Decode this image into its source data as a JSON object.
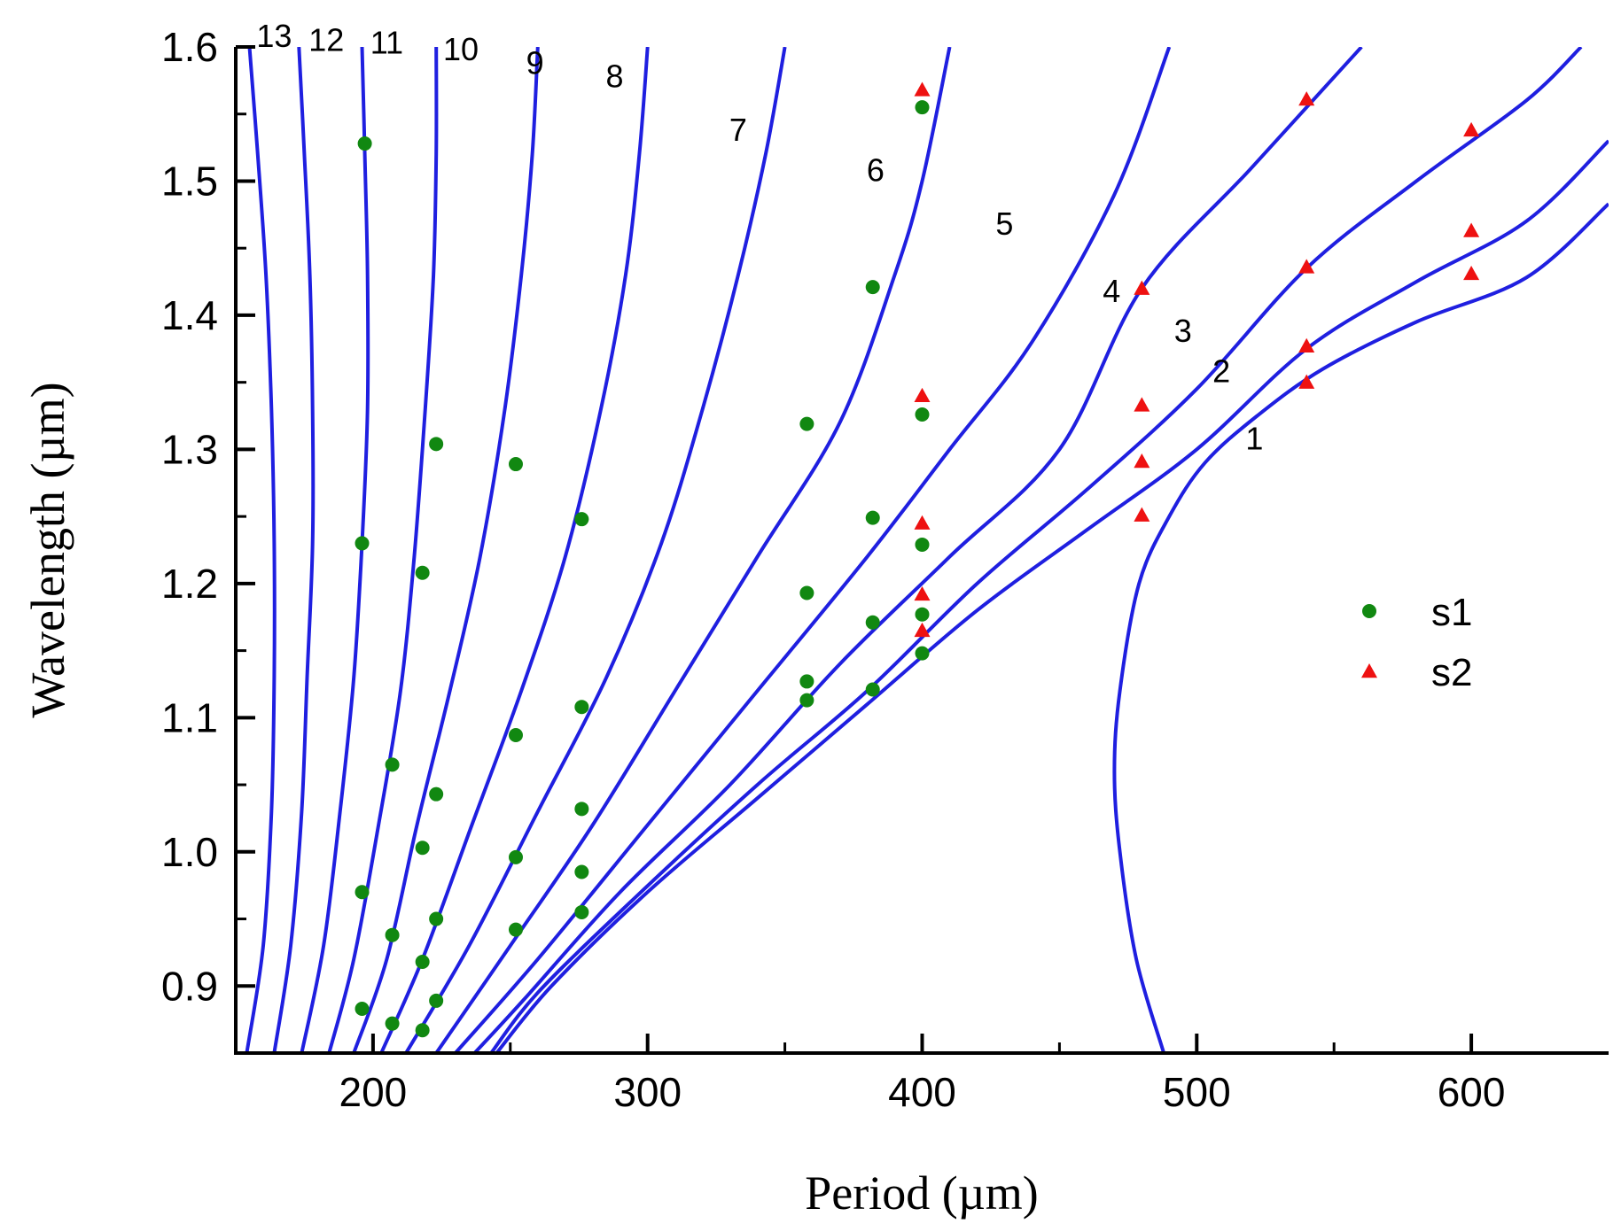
{
  "chart_data": {
    "type": "scatter",
    "title": "",
    "xlabel": "Period (µm)",
    "ylabel": "Wavelength (µm)",
    "xlim": [
      150,
      650
    ],
    "ylim": [
      0.85,
      1.6
    ],
    "xticks": [
      200,
      300,
      400,
      500,
      600
    ],
    "xtick_labels": [
      "200",
      "300",
      "400",
      "500",
      "600"
    ],
    "xminor": [
      250,
      350,
      450,
      550
    ],
    "yticks": [
      0.9,
      1.0,
      1.1,
      1.2,
      1.3,
      1.4,
      1.5,
      1.6
    ],
    "ytick_labels": [
      "0.9",
      "1.0",
      "1.1",
      "1.2",
      "1.3",
      "1.4",
      "1.5",
      "1.6"
    ],
    "yminor": [
      0.95,
      1.05,
      1.15,
      1.25,
      1.35,
      1.45,
      1.55
    ],
    "grid": false,
    "legend_position": "right-middle",
    "curve_color": "#1f1fe0",
    "curves": [
      {
        "name": "1",
        "label_at": [
          521,
          1.3
        ],
        "points": [
          [
            488,
            0.85
          ],
          [
            478,
            0.92
          ],
          [
            472,
            1.0
          ],
          [
            470,
            1.06
          ],
          [
            472,
            1.12
          ],
          [
            479,
            1.2
          ],
          [
            490,
            1.25
          ],
          [
            503,
            1.29
          ],
          [
            522,
            1.325
          ],
          [
            546,
            1.36
          ],
          [
            580,
            1.395
          ],
          [
            620,
            1.428
          ],
          [
            650,
            1.483
          ]
        ]
      },
      {
        "name": "2",
        "label_at": [
          509,
          1.35
        ],
        "points": [
          [
            245,
            0.85
          ],
          [
            265,
            0.9
          ],
          [
            300,
            0.97
          ],
          [
            340,
            1.04
          ],
          [
            380,
            1.11
          ],
          [
            420,
            1.18
          ],
          [
            460,
            1.24
          ],
          [
            500,
            1.3
          ],
          [
            540,
            1.375
          ],
          [
            580,
            1.425
          ],
          [
            620,
            1.47
          ],
          [
            650,
            1.53
          ]
        ]
      },
      {
        "name": "3",
        "label_at": [
          495,
          1.38
        ],
        "points": [
          [
            243,
            0.85
          ],
          [
            260,
            0.895
          ],
          [
            295,
            0.965
          ],
          [
            340,
            1.05
          ],
          [
            380,
            1.12
          ],
          [
            420,
            1.2
          ],
          [
            460,
            1.27
          ],
          [
            500,
            1.345
          ],
          [
            540,
            1.435
          ],
          [
            580,
            1.5
          ],
          [
            620,
            1.56
          ],
          [
            640,
            1.6
          ]
        ]
      },
      {
        "name": "4",
        "label_at": [
          469,
          1.41
        ],
        "points": [
          [
            237,
            0.85
          ],
          [
            255,
            0.89
          ],
          [
            290,
            0.97
          ],
          [
            330,
            1.05
          ],
          [
            370,
            1.14
          ],
          [
            410,
            1.22
          ],
          [
            450,
            1.3
          ],
          [
            480,
            1.42
          ],
          [
            520,
            1.51
          ],
          [
            560,
            1.6
          ]
        ]
      },
      {
        "name": "5",
        "label_at": [
          430,
          1.46
        ],
        "points": [
          [
            230,
            0.85
          ],
          [
            260,
            0.92
          ],
          [
            300,
            1.02
          ],
          [
            340,
            1.12
          ],
          [
            380,
            1.22
          ],
          [
            410,
            1.3
          ],
          [
            440,
            1.38
          ],
          [
            470,
            1.49
          ],
          [
            490,
            1.6
          ]
        ]
      },
      {
        "name": "6",
        "label_at": [
          383,
          1.5
        ],
        "points": [
          [
            223,
            0.85
          ],
          [
            250,
            0.93
          ],
          [
            280,
            1.02
          ],
          [
            310,
            1.12
          ],
          [
            340,
            1.22
          ],
          [
            370,
            1.32
          ],
          [
            390,
            1.43
          ],
          [
            400,
            1.5
          ],
          [
            410,
            1.6
          ]
        ]
      },
      {
        "name": "7",
        "label_at": [
          333,
          1.53
        ],
        "points": [
          [
            212,
            0.85
          ],
          [
            235,
            0.93
          ],
          [
            260,
            1.03
          ],
          [
            285,
            1.13
          ],
          [
            305,
            1.23
          ],
          [
            320,
            1.33
          ],
          [
            333,
            1.43
          ],
          [
            343,
            1.52
          ],
          [
            350,
            1.6
          ]
        ]
      },
      {
        "name": "8",
        "label_at": [
          288,
          1.57
        ],
        "points": [
          [
            203,
            0.85
          ],
          [
            218,
            0.92
          ],
          [
            236,
            1.02
          ],
          [
            254,
            1.12
          ],
          [
            270,
            1.22
          ],
          [
            283,
            1.33
          ],
          [
            292,
            1.43
          ],
          [
            297,
            1.52
          ],
          [
            300,
            1.6
          ]
        ]
      },
      {
        "name": "9",
        "label_at": [
          259,
          1.58
        ],
        "points": [
          [
            193,
            0.85
          ],
          [
            205,
            0.92
          ],
          [
            216,
            1.02
          ],
          [
            228,
            1.12
          ],
          [
            239,
            1.22
          ],
          [
            248,
            1.33
          ],
          [
            254,
            1.43
          ],
          [
            258,
            1.52
          ],
          [
            260,
            1.6
          ]
        ]
      },
      {
        "name": "10",
        "label_at": [
          232,
          1.59
        ],
        "points": [
          [
            184,
            0.85
          ],
          [
            193,
            0.92
          ],
          [
            202,
            1.02
          ],
          [
            210,
            1.12
          ],
          [
            215,
            1.22
          ],
          [
            219,
            1.33
          ],
          [
            222,
            1.43
          ],
          [
            223,
            1.52
          ],
          [
            223,
            1.6
          ]
        ]
      },
      {
        "name": "11",
        "label_at": [
          205,
          1.595
        ],
        "points": [
          [
            174,
            0.85
          ],
          [
            182,
            0.93
          ],
          [
            188,
            1.03
          ],
          [
            193,
            1.13
          ],
          [
            196,
            1.23
          ],
          [
            198,
            1.33
          ],
          [
            198,
            1.43
          ],
          [
            197,
            1.52
          ],
          [
            196,
            1.6
          ]
        ]
      },
      {
        "name": "12",
        "label_at": [
          183,
          1.597
        ],
        "points": [
          [
            164,
            0.85
          ],
          [
            170,
            0.93
          ],
          [
            174,
            1.03
          ],
          [
            176,
            1.13
          ],
          [
            178,
            1.23
          ],
          [
            178,
            1.33
          ],
          [
            177,
            1.43
          ],
          [
            175,
            1.52
          ],
          [
            173,
            1.6
          ]
        ]
      },
      {
        "name": "13",
        "label_at": [
          164,
          1.6
        ],
        "points": [
          [
            154,
            0.85
          ],
          [
            160,
            0.93
          ],
          [
            163,
            1.03
          ],
          [
            164,
            1.13
          ],
          [
            164,
            1.23
          ],
          [
            163,
            1.33
          ],
          [
            161,
            1.43
          ],
          [
            158,
            1.52
          ],
          [
            155,
            1.6
          ]
        ]
      }
    ],
    "series": [
      {
        "name": "s1",
        "marker": "circle",
        "color": "#118811",
        "points": [
          [
            197,
            1.528
          ],
          [
            196,
            1.23
          ],
          [
            196,
            0.97
          ],
          [
            196,
            0.883
          ],
          [
            207,
            1.065
          ],
          [
            207,
            0.938
          ],
          [
            207,
            0.872
          ],
          [
            218,
            1.208
          ],
          [
            218,
            1.003
          ],
          [
            218,
            0.918
          ],
          [
            218,
            0.867
          ],
          [
            223,
            1.304
          ],
          [
            223,
            1.043
          ],
          [
            223,
            0.95
          ],
          [
            223,
            0.889
          ],
          [
            252,
            1.289
          ],
          [
            252,
            1.087
          ],
          [
            252,
            0.996
          ],
          [
            252,
            0.942
          ],
          [
            276,
            1.248
          ],
          [
            276,
            1.108
          ],
          [
            276,
            1.032
          ],
          [
            276,
            0.985
          ],
          [
            276,
            0.955
          ],
          [
            358,
            1.319
          ],
          [
            358,
            1.193
          ],
          [
            358,
            1.127
          ],
          [
            358,
            1.113
          ],
          [
            382,
            1.421
          ],
          [
            382,
            1.249
          ],
          [
            382,
            1.171
          ],
          [
            382,
            1.121
          ],
          [
            400,
            1.555
          ],
          [
            400,
            1.326
          ],
          [
            400,
            1.229
          ],
          [
            400,
            1.177
          ],
          [
            400,
            1.148
          ]
        ]
      },
      {
        "name": "s2",
        "marker": "triangle",
        "color": "#ee1111",
        "points": [
          [
            400,
            1.568
          ],
          [
            400,
            1.34
          ],
          [
            400,
            1.245
          ],
          [
            400,
            1.192
          ],
          [
            400,
            1.165
          ],
          [
            480,
            1.42
          ],
          [
            480,
            1.333
          ],
          [
            480,
            1.291
          ],
          [
            480,
            1.251
          ],
          [
            540,
            1.561
          ],
          [
            540,
            1.436
          ],
          [
            540,
            1.377
          ],
          [
            540,
            1.35
          ],
          [
            600,
            1.538
          ],
          [
            600,
            1.463
          ],
          [
            600,
            1.431
          ]
        ]
      }
    ]
  }
}
